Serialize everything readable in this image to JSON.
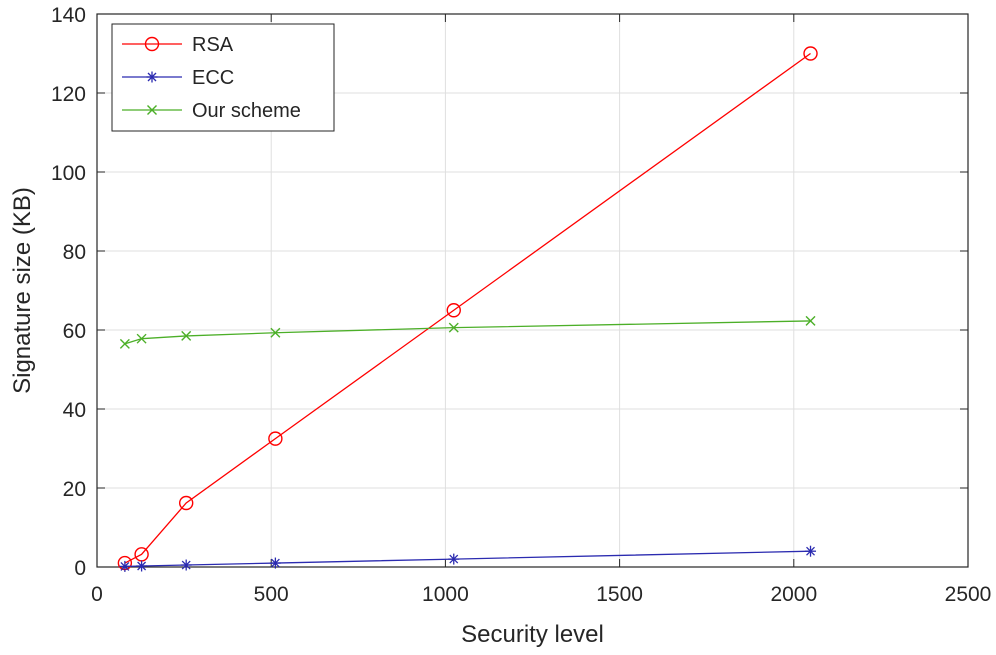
{
  "chart_data": {
    "type": "line",
    "title": "",
    "xlabel": "Security level",
    "ylabel": "Signature size (KB)",
    "xlim": [
      0,
      2500
    ],
    "ylim": [
      0,
      140
    ],
    "xticks": [
      0,
      500,
      1000,
      1500,
      2000,
      2500
    ],
    "yticks": [
      0,
      20,
      40,
      60,
      80,
      100,
      120,
      140
    ],
    "grid": true,
    "legend_position": "top-left",
    "x": [
      80,
      128,
      256,
      512,
      1024,
      2048
    ],
    "series": [
      {
        "name": "RSA",
        "color": "#ff0000",
        "marker": "circle",
        "values": [
          1.0,
          3.2,
          16.2,
          32.5,
          65.0,
          130.0
        ]
      },
      {
        "name": "ECC",
        "color": "#2b2bb0",
        "marker": "asterisk",
        "values": [
          0.15,
          0.25,
          0.5,
          1.0,
          2.0,
          4.0
        ]
      },
      {
        "name": "Our scheme",
        "color": "#4caf28",
        "marker": "x",
        "values": [
          56.5,
          57.8,
          58.5,
          59.3,
          60.6,
          62.3
        ]
      }
    ]
  }
}
